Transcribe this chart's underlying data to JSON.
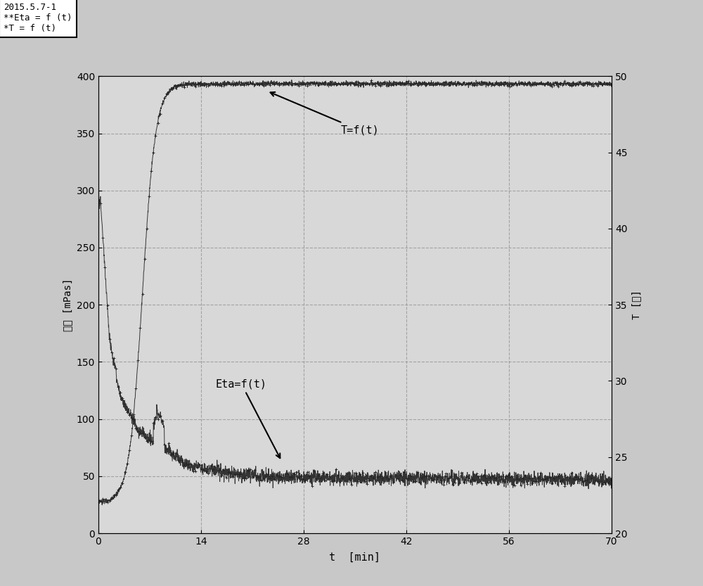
{
  "title_box_text": "2015.5.7-1\n**Eta = f (t)\n*T = f (t)",
  "xlabel": "t  [min]",
  "ylabel_left": "粘度 [mPas]",
  "ylabel_right": "T [℃]",
  "xlim": [
    0,
    70
  ],
  "ylim_left": [
    0,
    400
  ],
  "ylim_right": [
    20,
    50
  ],
  "xticks": [
    0,
    14,
    28,
    42,
    56,
    70
  ],
  "yticks_left": [
    0,
    50,
    100,
    150,
    200,
    250,
    300,
    350,
    400
  ],
  "yticks_right": [
    20,
    25,
    30,
    35,
    40,
    45,
    50
  ],
  "grid_color": "#999999",
  "plot_bg_color": "#d8d8d8",
  "fig_bg_color": "#c8c8c8",
  "line_color": "#222222",
  "annotation_eta": "Eta=f(t)",
  "annotation_T": "T=f(t)"
}
